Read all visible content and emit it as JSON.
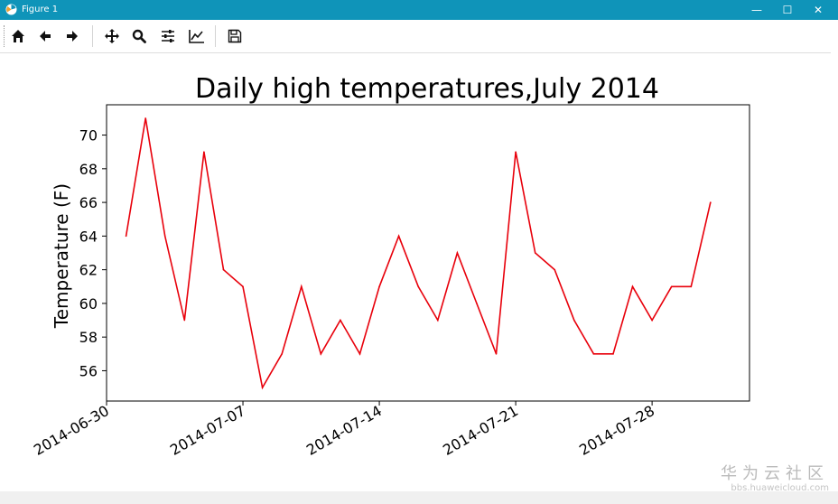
{
  "window": {
    "title": "Figure 1",
    "minimize_glyph": "—",
    "maximize_glyph": "☐",
    "close_glyph": "✕"
  },
  "toolbar": {
    "buttons": [
      "home-icon",
      "back-icon",
      "forward-icon",
      "pan-icon",
      "zoom-icon",
      "configure-subplots-icon",
      "edit-axis-icon",
      "save-icon"
    ]
  },
  "chart_data": {
    "type": "line",
    "title": "Daily high temperatures,July 2014",
    "xlabel": "",
    "ylabel": "Temperature (F)",
    "x": [
      "2014-07-01",
      "2014-07-02",
      "2014-07-03",
      "2014-07-04",
      "2014-07-05",
      "2014-07-06",
      "2014-07-07",
      "2014-07-08",
      "2014-07-09",
      "2014-07-10",
      "2014-07-11",
      "2014-07-12",
      "2014-07-13",
      "2014-07-14",
      "2014-07-15",
      "2014-07-16",
      "2014-07-17",
      "2014-07-18",
      "2014-07-19",
      "2014-07-20",
      "2014-07-21",
      "2014-07-22",
      "2014-07-23",
      "2014-07-24",
      "2014-07-25",
      "2014-07-26",
      "2014-07-27",
      "2014-07-28",
      "2014-07-29",
      "2014-07-30",
      "2014-07-31"
    ],
    "series": [
      {
        "color": "#e8000b",
        "values": [
          64,
          71,
          64,
          59,
          69,
          62,
          61,
          55,
          57,
          61,
          57,
          59,
          57,
          61,
          64,
          61,
          59,
          63,
          60,
          57,
          69,
          63,
          62,
          59,
          57,
          57,
          61,
          59,
          61,
          61,
          66
        ]
      }
    ],
    "xlim": [
      "2014-06-30",
      "2014-08-02"
    ],
    "ylim": [
      54.2,
      71.8
    ],
    "xticks": [
      "2014-06-30",
      "2014-07-07",
      "2014-07-14",
      "2014-07-21",
      "2014-07-28"
    ],
    "yticks": [
      56,
      58,
      60,
      62,
      64,
      66,
      68,
      70
    ],
    "grid": false,
    "legend": "none"
  },
  "watermark": {
    "line1": "华为云社区",
    "line2": "bbs.huaweicloud.com"
  }
}
